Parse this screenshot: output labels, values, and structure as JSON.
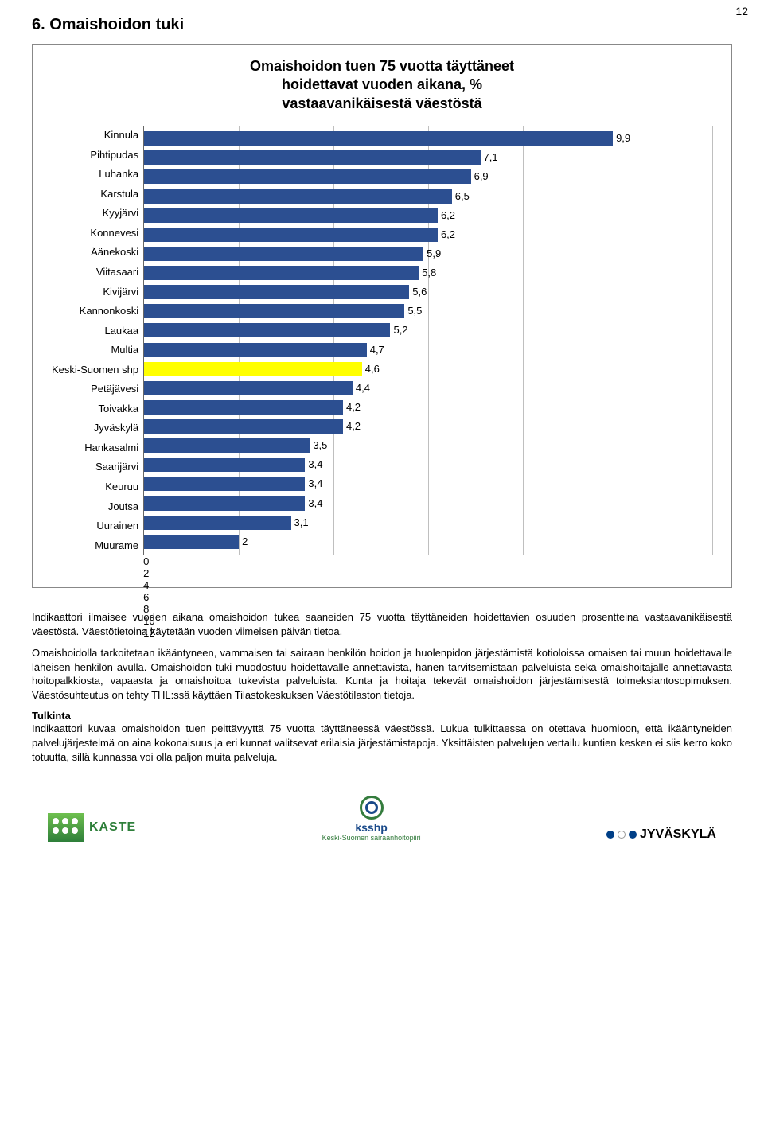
{
  "page_number": "12",
  "section_title": "6. Omaishoidon tuki",
  "chart": {
    "type": "bar",
    "title_l1": "Omaishoidon tuen 75 vuotta täyttäneet",
    "title_l2": "hoidettavat vuoden aikana, %",
    "title_l3": "vastaavanikäisestä väestöstä",
    "xlim": [
      0,
      12
    ],
    "xtick_step": 2,
    "xticks": [
      "0",
      "2",
      "4",
      "6",
      "8",
      "10",
      "12"
    ],
    "bar_color": "#2c4f91",
    "highlight_color": "#ffff00",
    "grid_color": "#bfbfbf",
    "axis_color": "#666666",
    "background_color": "#ffffff",
    "label_fontsize": 13,
    "rows": [
      {
        "label": "Kinnula",
        "value": 9.9,
        "vlabel": "9,9",
        "highlight": false
      },
      {
        "label": "Pihtipudas",
        "value": 7.1,
        "vlabel": "7,1",
        "highlight": false
      },
      {
        "label": "Luhanka",
        "value": 6.9,
        "vlabel": "6,9",
        "highlight": false
      },
      {
        "label": "Karstula",
        "value": 6.5,
        "vlabel": "6,5",
        "highlight": false
      },
      {
        "label": "Kyyjärvi",
        "value": 6.2,
        "vlabel": "6,2",
        "highlight": false
      },
      {
        "label": "Konnevesi",
        "value": 6.2,
        "vlabel": "6,2",
        "highlight": false
      },
      {
        "label": "Äänekoski",
        "value": 5.9,
        "vlabel": "5,9",
        "highlight": false
      },
      {
        "label": "Viitasaari",
        "value": 5.8,
        "vlabel": "5,8",
        "highlight": false
      },
      {
        "label": "Kivijärvi",
        "value": 5.6,
        "vlabel": "5,6",
        "highlight": false
      },
      {
        "label": "Kannonkoski",
        "value": 5.5,
        "vlabel": "5,5",
        "highlight": false
      },
      {
        "label": "Laukaa",
        "value": 5.2,
        "vlabel": "5,2",
        "highlight": false
      },
      {
        "label": "Multia",
        "value": 4.7,
        "vlabel": "4,7",
        "highlight": false
      },
      {
        "label": "Keski-Suomen shp",
        "value": 4.6,
        "vlabel": "4,6",
        "highlight": true
      },
      {
        "label": "Petäjävesi",
        "value": 4.4,
        "vlabel": "4,4",
        "highlight": false
      },
      {
        "label": "Toivakka",
        "value": 4.2,
        "vlabel": "4,2",
        "highlight": false
      },
      {
        "label": "Jyväskylä",
        "value": 4.2,
        "vlabel": "4,2",
        "highlight": false
      },
      {
        "label": "Hankasalmi",
        "value": 3.5,
        "vlabel": "3,5",
        "highlight": false
      },
      {
        "label": "Saarijärvi",
        "value": 3.4,
        "vlabel": "3,4",
        "highlight": false
      },
      {
        "label": "Keuruu",
        "value": 3.4,
        "vlabel": "3,4",
        "highlight": false
      },
      {
        "label": "Joutsa",
        "value": 3.4,
        "vlabel": "3,4",
        "highlight": false
      },
      {
        "label": "Uurainen",
        "value": 3.1,
        "vlabel": "3,1",
        "highlight": false
      },
      {
        "label": "Muurame",
        "value": 2.0,
        "vlabel": "2",
        "highlight": false
      }
    ]
  },
  "text": {
    "p1": "Indikaattori ilmaisee vuoden aikana omaishoidon tukea saaneiden 75 vuotta täyttäneiden hoidettavien osuuden prosentteina vastaavanikäisestä väestöstä. Väestötietoina käytetään vuoden viimeisen päivän tietoa.",
    "p2": "Omaishoidolla tarkoitetaan ikääntyneen, vammaisen tai sairaan henkilön hoidon ja huolenpidon järjestämistä kotioloissa omaisen tai muun hoidettavalle läheisen henkilön avulla. Omaishoidon tuki muodostuu hoidettavalle annettavista, hänen tarvitsemistaan palveluista sekä omaishoitajalle annettavasta hoitopalkkiosta, vapaasta ja omaishoitoa tukevista palveluista. Kunta ja hoitaja tekevät omaishoidon järjestämisestä toimeksiantosopimuksen. Väestösuhteutus on tehty THL:ssä käyttäen Tilastokeskuksen Väestötilaston tietoja.",
    "h_tulkinta": "Tulkinta",
    "p3": "Indikaattori kuvaa omaishoidon tuen peittävyyttä 75 vuotta täyttäneessä väestössä. Lukua tulkittaessa on otettava huomioon, että ikääntyneiden palvelujärjestelmä on aina kokonaisuus ja eri kunnat valitsevat erilaisia järjestämistapoja. Yksittäisten palvelujen vertailu kuntien kesken ei siis kerro koko totuutta, sillä kunnassa voi olla paljon muita palveluja."
  },
  "logos": {
    "kaste": "KASTE",
    "ksshp": "ksshp",
    "ksshp_sub": "Keski-Suomen sairaanhoitopiiri",
    "jyvaskyla": "JYVÄSKYLÄ"
  }
}
